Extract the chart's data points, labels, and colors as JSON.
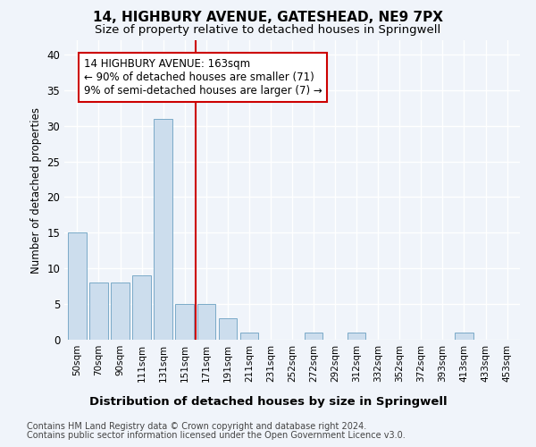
{
  "title": "14, HIGHBURY AVENUE, GATESHEAD, NE9 7PX",
  "subtitle": "Size of property relative to detached houses in Springwell",
  "xlabel_bottom": "Distribution of detached houses by size in Springwell",
  "ylabel": "Number of detached properties",
  "bar_color": "#ccdded",
  "bar_edge_color": "#7aaac8",
  "bar_heights": [
    15,
    8,
    8,
    9,
    31,
    5,
    5,
    3,
    1,
    0,
    0,
    1,
    0,
    1,
    0,
    0,
    0,
    0,
    1,
    0,
    0
  ],
  "x_labels": [
    "50sqm",
    "70sqm",
    "90sqm",
    "111sqm",
    "131sqm",
    "151sqm",
    "171sqm",
    "191sqm",
    "211sqm",
    "231sqm",
    "252sqm",
    "272sqm",
    "292sqm",
    "312sqm",
    "332sqm",
    "352sqm",
    "372sqm",
    "393sqm",
    "413sqm",
    "433sqm",
    "453sqm"
  ],
  "vline_x_idx": 6,
  "vline_color": "#cc0000",
  "annotation_text": "14 HIGHBURY AVENUE: 163sqm\n← 90% of detached houses are smaller (71)\n9% of semi-detached houses are larger (7) →",
  "annotation_box_color": "#ffffff",
  "annotation_box_edge": "#cc0000",
  "ylim": [
    0,
    42
  ],
  "yticks": [
    0,
    5,
    10,
    15,
    20,
    25,
    30,
    35,
    40
  ],
  "footer_line1": "Contains HM Land Registry data © Crown copyright and database right 2024.",
  "footer_line2": "Contains public sector information licensed under the Open Government Licence v3.0.",
  "bg_color": "#f0f4fa",
  "plot_bg_color": "#f0f4fa",
  "grid_color": "#ffffff",
  "title_fontsize": 11,
  "subtitle_fontsize": 9.5,
  "annotation_fontsize": 8.5,
  "footer_fontsize": 7.0,
  "ylabel_fontsize": 8.5,
  "xlabel_fontsize": 9.5
}
